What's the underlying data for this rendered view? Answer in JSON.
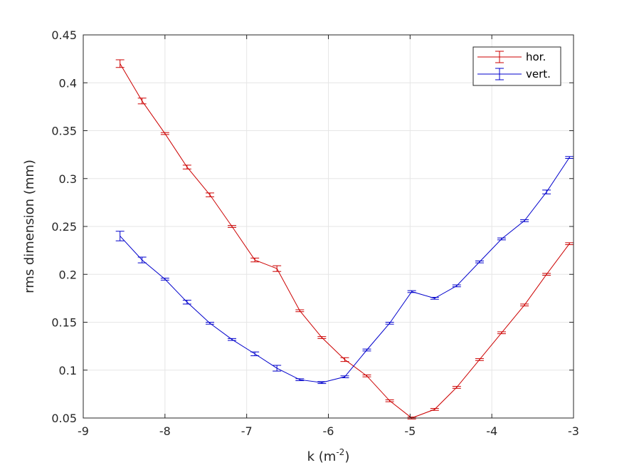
{
  "chart_data": {
    "type": "line",
    "title": "",
    "xlabel": "k (m",
    "xlabel_superscript": "-2",
    "xlabel_suffix": ")",
    "ylabel": "rms dimension (mm)",
    "xlim": [
      -9,
      -3
    ],
    "ylim": [
      0.05,
      0.45
    ],
    "xticks": [
      -9,
      -8,
      -7,
      -6,
      -5,
      -4,
      -3
    ],
    "yticks": [
      0.05,
      0.1,
      0.15,
      0.2,
      0.25,
      0.3,
      0.35,
      0.4,
      0.45
    ],
    "xtick_labels": [
      "-9",
      "-8",
      "-7",
      "-6",
      "-5",
      "-4",
      "-3"
    ],
    "ytick_labels": [
      "0.05",
      "0.1",
      "0.15",
      "0.2",
      "0.25",
      "0.3",
      "0.35",
      "0.4",
      "0.45"
    ],
    "grid": true,
    "legend_position": "top-right",
    "series": [
      {
        "name": "hor.",
        "color": "#cc0000",
        "x": [
          -8.55,
          -8.28,
          -8.0,
          -7.73,
          -7.45,
          -7.18,
          -6.9,
          -6.63,
          -6.35,
          -6.08,
          -5.8,
          -5.53,
          -5.25,
          -4.98,
          -4.7,
          -4.43,
          -4.15,
          -3.88,
          -3.6,
          -3.33,
          -3.05
        ],
        "y": [
          0.42,
          0.381,
          0.347,
          0.312,
          0.283,
          0.25,
          0.215,
          0.206,
          0.162,
          0.134,
          0.111,
          0.094,
          0.068,
          0.05,
          0.059,
          0.082,
          0.111,
          0.139,
          0.168,
          0.2,
          0.232
        ],
        "err": [
          0.004,
          0.003,
          0.001,
          0.002,
          0.002,
          0.001,
          0.002,
          0.003,
          0.001,
          0.001,
          0.002,
          0.001,
          0.001,
          0.001,
          0.001,
          0.001,
          0.001,
          0.001,
          0.001,
          0.001,
          0.001
        ]
      },
      {
        "name": "vert.",
        "color": "#0000cc",
        "x": [
          -8.55,
          -8.28,
          -8.0,
          -7.73,
          -7.45,
          -7.18,
          -6.9,
          -6.63,
          -6.35,
          -6.08,
          -5.8,
          -5.53,
          -5.25,
          -4.98,
          -4.7,
          -4.43,
          -4.15,
          -3.88,
          -3.6,
          -3.33,
          -3.05
        ],
        "y": [
          0.24,
          0.215,
          0.195,
          0.171,
          0.149,
          0.132,
          0.117,
          0.102,
          0.09,
          0.087,
          0.093,
          0.121,
          0.149,
          0.182,
          0.175,
          0.188,
          0.213,
          0.237,
          0.256,
          0.286,
          0.322
        ],
        "err": [
          0.005,
          0.003,
          0.001,
          0.002,
          0.001,
          0.001,
          0.002,
          0.003,
          0.001,
          0.001,
          0.001,
          0.001,
          0.001,
          0.001,
          0.001,
          0.001,
          0.001,
          0.001,
          0.001,
          0.002,
          0.001
        ]
      }
    ]
  }
}
